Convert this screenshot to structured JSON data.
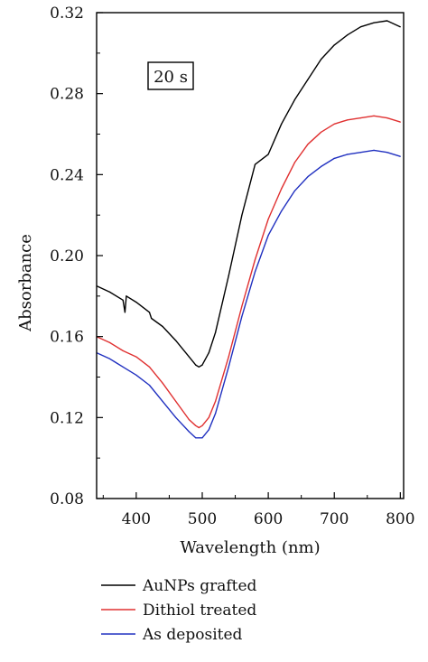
{
  "chart_data": {
    "type": "line",
    "xlabel": "Wavelength (nm)",
    "ylabel": "Absorbance",
    "xlim": [
      340,
      805
    ],
    "ylim": [
      0.08,
      0.32
    ],
    "xticks": [
      400,
      500,
      600,
      700,
      800
    ],
    "xtick_labels": [
      "400",
      "500",
      "600",
      "700",
      "800"
    ],
    "yticks": [
      0.08,
      0.12,
      0.16,
      0.2,
      0.24,
      0.28,
      0.32
    ],
    "ytick_labels": [
      "0.08",
      "0.12",
      "0.16",
      "0.20",
      "0.24",
      "0.28",
      "0.32"
    ],
    "annotation": "20 s",
    "legend_position": "below",
    "grid": false,
    "series": [
      {
        "name": "AuNPs grafted",
        "color": "#000000",
        "x": [
          340,
          360,
          380,
          383,
          385,
          400,
          420,
          423,
          440,
          460,
          480,
          490,
          495,
          500,
          510,
          520,
          540,
          560,
          580,
          600,
          620,
          640,
          660,
          680,
          700,
          720,
          740,
          760,
          780,
          800
        ],
        "y": [
          0.185,
          0.182,
          0.178,
          0.172,
          0.18,
          0.177,
          0.172,
          0.169,
          0.165,
          0.158,
          0.15,
          0.146,
          0.145,
          0.146,
          0.152,
          0.162,
          0.19,
          0.22,
          0.245,
          0.25,
          0.265,
          0.277,
          0.287,
          0.297,
          0.304,
          0.309,
          0.313,
          0.315,
          0.316,
          0.313
        ]
      },
      {
        "name": "Dithiol treated",
        "color": "#e03030",
        "x": [
          340,
          360,
          380,
          400,
          420,
          440,
          460,
          480,
          490,
          495,
          500,
          510,
          520,
          540,
          560,
          580,
          600,
          620,
          640,
          660,
          680,
          700,
          720,
          740,
          760,
          780,
          800
        ],
        "y": [
          0.16,
          0.157,
          0.153,
          0.15,
          0.145,
          0.137,
          0.128,
          0.119,
          0.116,
          0.115,
          0.116,
          0.12,
          0.128,
          0.15,
          0.175,
          0.198,
          0.218,
          0.233,
          0.246,
          0.255,
          0.261,
          0.265,
          0.267,
          0.268,
          0.269,
          0.268,
          0.266
        ]
      },
      {
        "name": "As deposited",
        "color": "#2030c0",
        "x": [
          340,
          360,
          380,
          400,
          420,
          440,
          460,
          480,
          490,
          495,
          500,
          510,
          520,
          540,
          560,
          580,
          600,
          620,
          640,
          660,
          680,
          700,
          720,
          740,
          760,
          780,
          800
        ],
        "y": [
          0.152,
          0.149,
          0.145,
          0.141,
          0.136,
          0.128,
          0.12,
          0.113,
          0.11,
          0.11,
          0.11,
          0.114,
          0.122,
          0.145,
          0.17,
          0.192,
          0.21,
          0.222,
          0.232,
          0.239,
          0.244,
          0.248,
          0.25,
          0.251,
          0.252,
          0.251,
          0.249
        ]
      }
    ]
  }
}
